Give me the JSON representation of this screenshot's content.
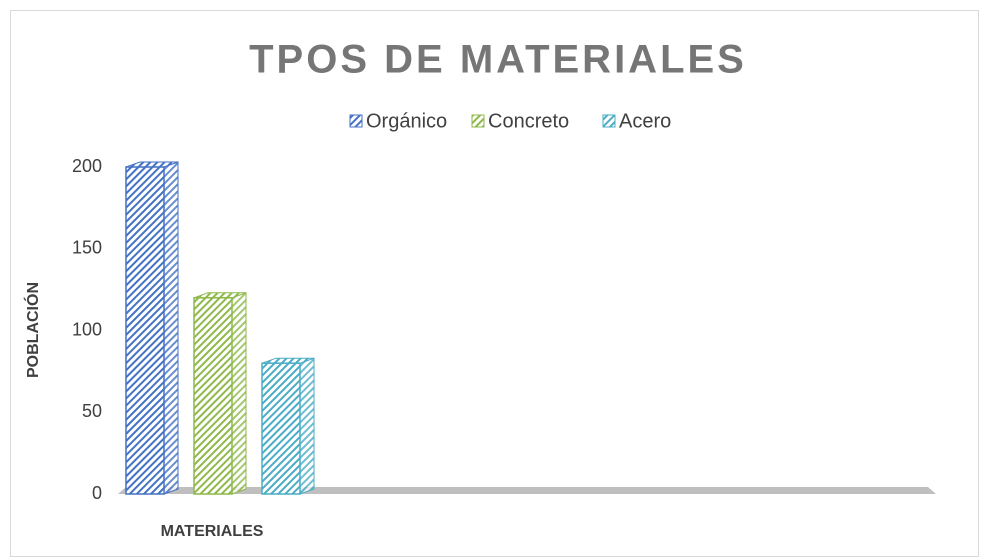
{
  "chart_data": {
    "type": "bar",
    "title": "TPOS DE MATERIALES",
    "x_label": "MATERIALES",
    "y_label": "POBLACIÓN",
    "categories": [
      null
    ],
    "series": [
      {
        "name": "Orgánico",
        "color": "#4472c4",
        "values": [
          200
        ]
      },
      {
        "name": "Concreto",
        "color": "#8fb94b",
        "values": [
          120
        ]
      },
      {
        "name": "Acero",
        "color": "#4bacc6",
        "values": [
          80
        ]
      }
    ],
    "ylim": [
      0,
      200
    ],
    "yticks": [
      0,
      50,
      100,
      150,
      200
    ],
    "legend": "top"
  }
}
